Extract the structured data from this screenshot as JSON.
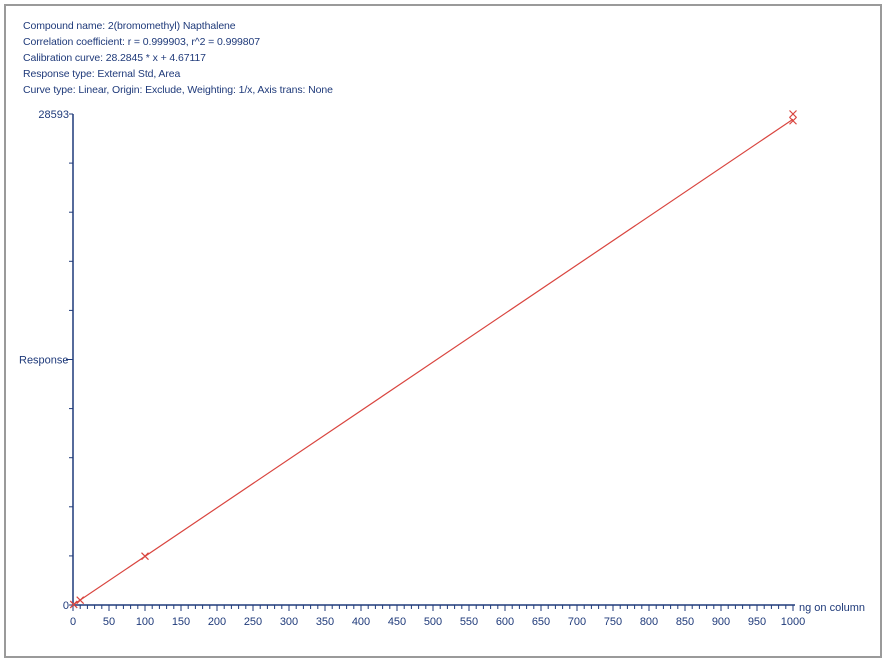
{
  "header": {
    "compound": "Compound name: 2(bromomethyl) Napthalene",
    "correlation": "Correlation coefficient: r = 0.999903, r^2 = 0.999807",
    "calibration": "Calibration curve: 28.2845 * x + 4.67117",
    "response_type": "Response type: External Std, Area",
    "curve_type": "Curve type: Linear, Origin: Exclude, Weighting: 1/x, Axis trans: None"
  },
  "colors": {
    "axis": "#1f3a7a",
    "curve": "#d9453f",
    "frame": "#9a9a9a"
  },
  "chart_data": {
    "type": "scatter",
    "xlabel": "ng on column",
    "ylabel": "Response",
    "xlim": [
      0,
      1000
    ],
    "ylim": [
      0,
      28593
    ],
    "x_tick_labels": [
      "0",
      "50",
      "100",
      "150",
      "200",
      "250",
      "300",
      "350",
      "400",
      "450",
      "500",
      "550",
      "600",
      "650",
      "700",
      "750",
      "800",
      "850",
      "900",
      "950",
      "1000"
    ],
    "y_tick_labels": [
      "0",
      "28593"
    ],
    "fit": {
      "slope": 28.2845,
      "intercept": 4.67117
    },
    "points": [
      {
        "x": 1,
        "y": 30
      },
      {
        "x": 10,
        "y": 280
      },
      {
        "x": 100,
        "y": 2840
      },
      {
        "x": 1000,
        "y": 28200
      },
      {
        "x": 1000,
        "y": 28593
      }
    ]
  }
}
